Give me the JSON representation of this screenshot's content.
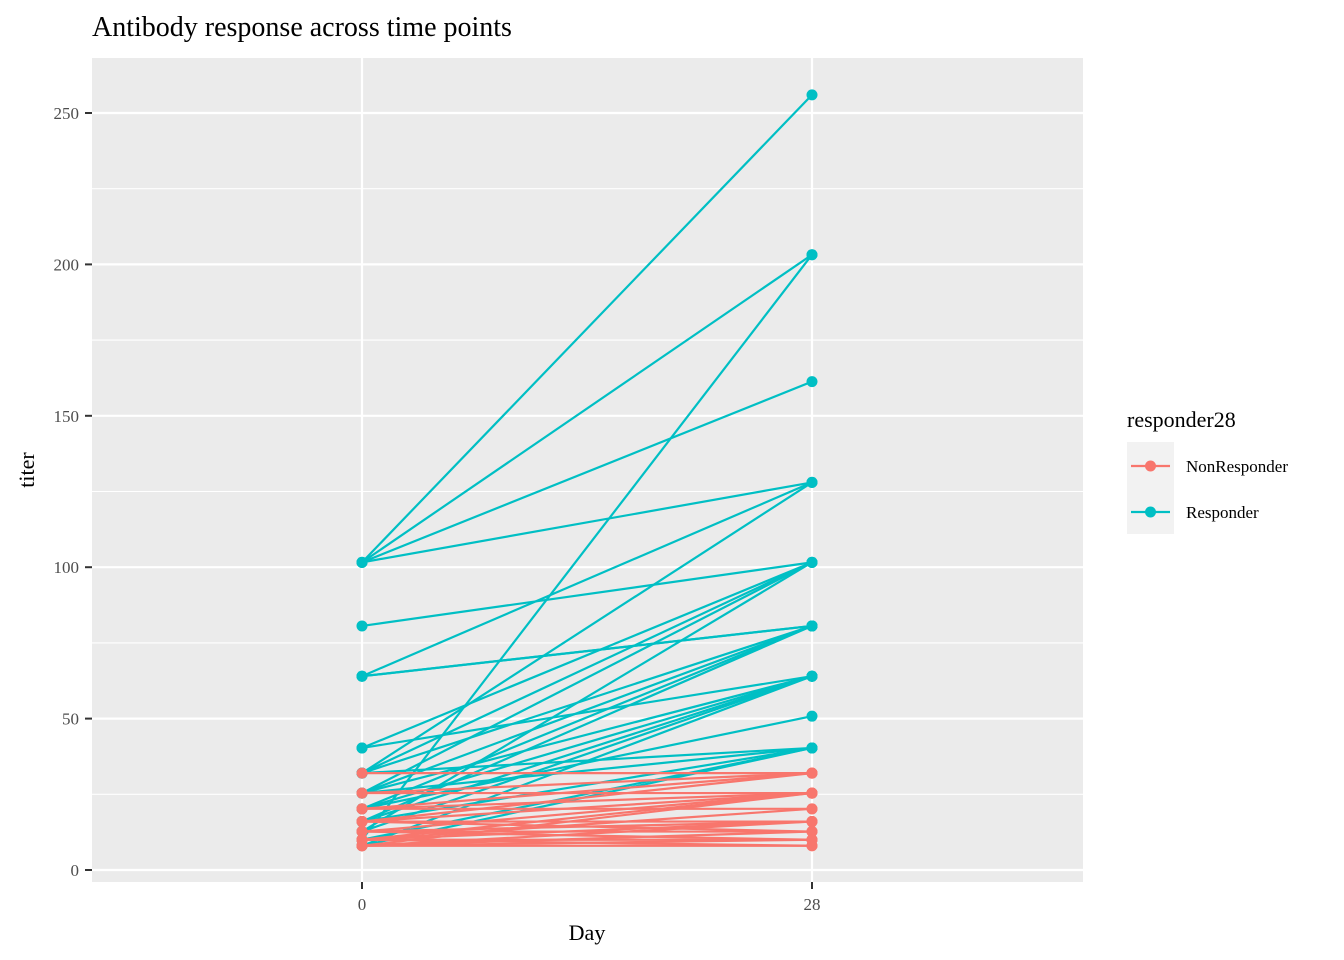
{
  "chart_data": {
    "type": "line",
    "title": "Antibody response across time points",
    "xlabel": "Day",
    "ylabel": "titer",
    "x_categories": [
      "0",
      "28"
    ],
    "ylim": [
      0,
      256
    ],
    "yticks": [
      0,
      50,
      100,
      150,
      200,
      250
    ],
    "grid": true,
    "legend": {
      "title": "responder28",
      "position": "right",
      "entries": [
        {
          "name": "NonResponder",
          "color": "#F8766D"
        },
        {
          "name": "Responder",
          "color": "#00BFC4"
        }
      ]
    },
    "series": [
      {
        "name": "Responder",
        "color": "#00BFC4",
        "pairs": [
          [
            101.6,
            256
          ],
          [
            101.6,
            203.2
          ],
          [
            101.6,
            161.3
          ],
          [
            101.6,
            128
          ],
          [
            10,
            203.2
          ],
          [
            80.6,
            101.6
          ],
          [
            64,
            128
          ],
          [
            64,
            80.6
          ],
          [
            64,
            80.6
          ],
          [
            40.3,
            101.6
          ],
          [
            40.3,
            64
          ],
          [
            32,
            128
          ],
          [
            32,
            101.6
          ],
          [
            32,
            80.6
          ],
          [
            32,
            40.3
          ],
          [
            25.4,
            101.6
          ],
          [
            25.4,
            80.6
          ],
          [
            25.4,
            64
          ],
          [
            25.4,
            40.3
          ],
          [
            20.2,
            80.6
          ],
          [
            20.2,
            64
          ],
          [
            20.2,
            50.8
          ],
          [
            16,
            80.6
          ],
          [
            16,
            64
          ],
          [
            16,
            40.3
          ],
          [
            12.7,
            101.6
          ],
          [
            12.7,
            64
          ],
          [
            10,
            40.3
          ],
          [
            8,
            40.3
          ],
          [
            8,
            64
          ]
        ]
      },
      {
        "name": "NonResponder",
        "color": "#F8766D",
        "pairs": [
          [
            32,
            32
          ],
          [
            25.4,
            32
          ],
          [
            25.4,
            25.4
          ],
          [
            20.2,
            32
          ],
          [
            20.2,
            25.4
          ],
          [
            20.2,
            20.2
          ],
          [
            16,
            32
          ],
          [
            16,
            25.4
          ],
          [
            16,
            16
          ],
          [
            16,
            12.7
          ],
          [
            12.7,
            25.4
          ],
          [
            12.7,
            16
          ],
          [
            12.7,
            12.7
          ],
          [
            12.7,
            10
          ],
          [
            10,
            25.4
          ],
          [
            10,
            20.2
          ],
          [
            10,
            16
          ],
          [
            10,
            10
          ],
          [
            10,
            8
          ],
          [
            8,
            25.4
          ],
          [
            8,
            16
          ],
          [
            8,
            12.7
          ],
          [
            8,
            8
          ],
          [
            8,
            10
          ]
        ]
      }
    ]
  }
}
